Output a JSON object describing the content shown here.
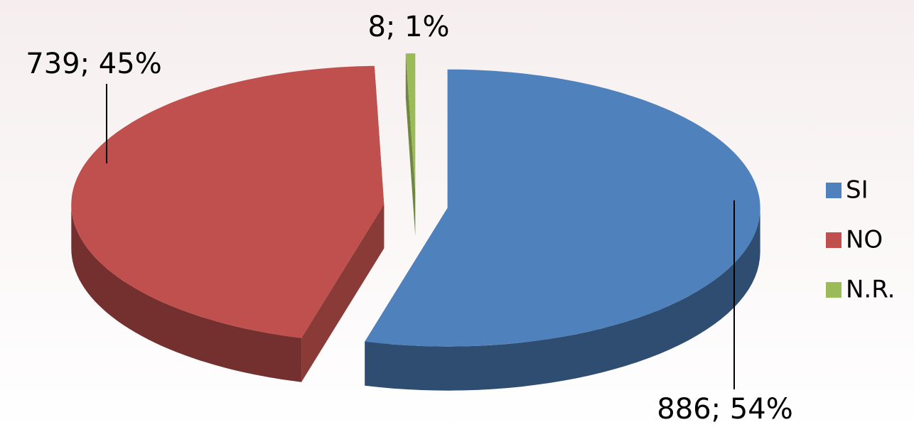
{
  "chart_data": {
    "type": "pie",
    "categories": [
      "SI",
      "NO",
      "N.R."
    ],
    "values": [
      886,
      739,
      8
    ],
    "value_labels": [
      "886; 54%",
      "739; 45%",
      "8; 1%"
    ],
    "colors": [
      "#4f81bd",
      "#c0504d",
      "#9bbb59"
    ],
    "legend": "right"
  }
}
